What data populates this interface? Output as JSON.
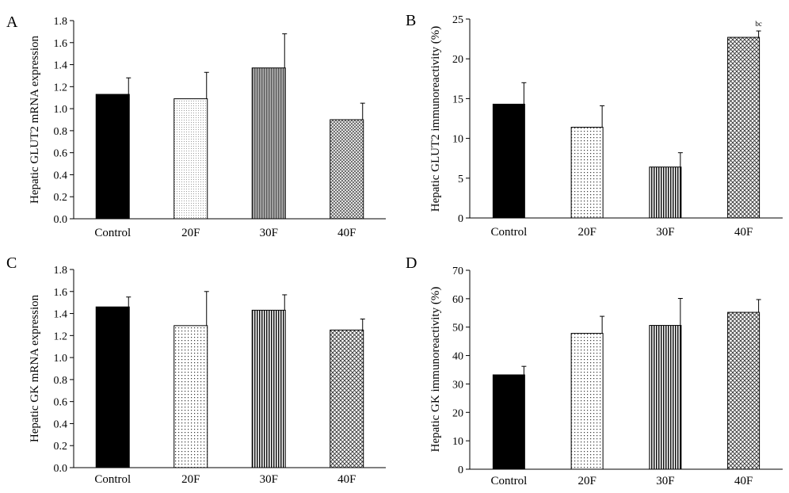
{
  "chart_data": [
    {
      "panel": "A",
      "type": "bar",
      "ylabel": "Hepatic GLUT2 mRNA expression",
      "categories": [
        "Control",
        "20F",
        "30F",
        "40F"
      ],
      "values": [
        1.13,
        1.09,
        1.37,
        0.9
      ],
      "errors": [
        0.15,
        0.24,
        0.31,
        0.15
      ],
      "ylim": [
        0,
        1.8
      ],
      "yticks": [
        "0.0",
        "0.2",
        "0.4",
        "0.6",
        "0.8",
        "1.0",
        "1.2",
        "1.4",
        "1.6",
        "1.8"
      ],
      "patterns": [
        "solid-black",
        "fine-dots",
        "vertical-gray",
        "cross-dense"
      ],
      "annotations": [
        "",
        "",
        "",
        ""
      ],
      "grid": false
    },
    {
      "panel": "B",
      "type": "bar",
      "ylabel": "Hepatic GLUT2 immunoreactivity (%)",
      "categories": [
        "Control",
        "20F",
        "30F",
        "40F"
      ],
      "values": [
        14.3,
        11.4,
        6.4,
        22.7
      ],
      "errors": [
        2.7,
        2.7,
        1.8,
        0.8
      ],
      "ylim": [
        0,
        25
      ],
      "yticks": [
        "0",
        "5",
        "10",
        "15",
        "20",
        "25"
      ],
      "patterns": [
        "solid-black",
        "dots",
        "vertical-black",
        "cross"
      ],
      "annotations": [
        "",
        "",
        "",
        "bc"
      ],
      "grid": false
    },
    {
      "panel": "C",
      "type": "bar",
      "ylabel": "Hepatic GK mRNA expression",
      "categories": [
        "Control",
        "20F",
        "30F",
        "40F"
      ],
      "values": [
        1.46,
        1.29,
        1.43,
        1.25
      ],
      "errors": [
        0.09,
        0.31,
        0.14,
        0.1
      ],
      "ylim": [
        0,
        1.8
      ],
      "yticks": [
        "0.0",
        "0.2",
        "0.4",
        "0.6",
        "0.8",
        "1.0",
        "1.2",
        "1.4",
        "1.6",
        "1.8"
      ],
      "patterns": [
        "solid-black",
        "dots",
        "vertical-black",
        "cross"
      ],
      "annotations": [
        "",
        "",
        "",
        ""
      ],
      "grid": false
    },
    {
      "panel": "D",
      "type": "bar",
      "ylabel": "Hepatic GK immunoreactivity (%)",
      "categories": [
        "Control",
        "20F",
        "30F",
        "40F"
      ],
      "values": [
        33.2,
        47.8,
        50.6,
        55.2
      ],
      "errors": [
        3.0,
        6.0,
        9.5,
        4.5
      ],
      "ylim": [
        0,
        70
      ],
      "yticks": [
        "0",
        "10",
        "20",
        "30",
        "40",
        "50",
        "60",
        "70"
      ],
      "patterns": [
        "solid-black",
        "dots",
        "vertical-black",
        "cross"
      ],
      "annotations": [
        "",
        "",
        "",
        ""
      ],
      "grid": false
    }
  ]
}
